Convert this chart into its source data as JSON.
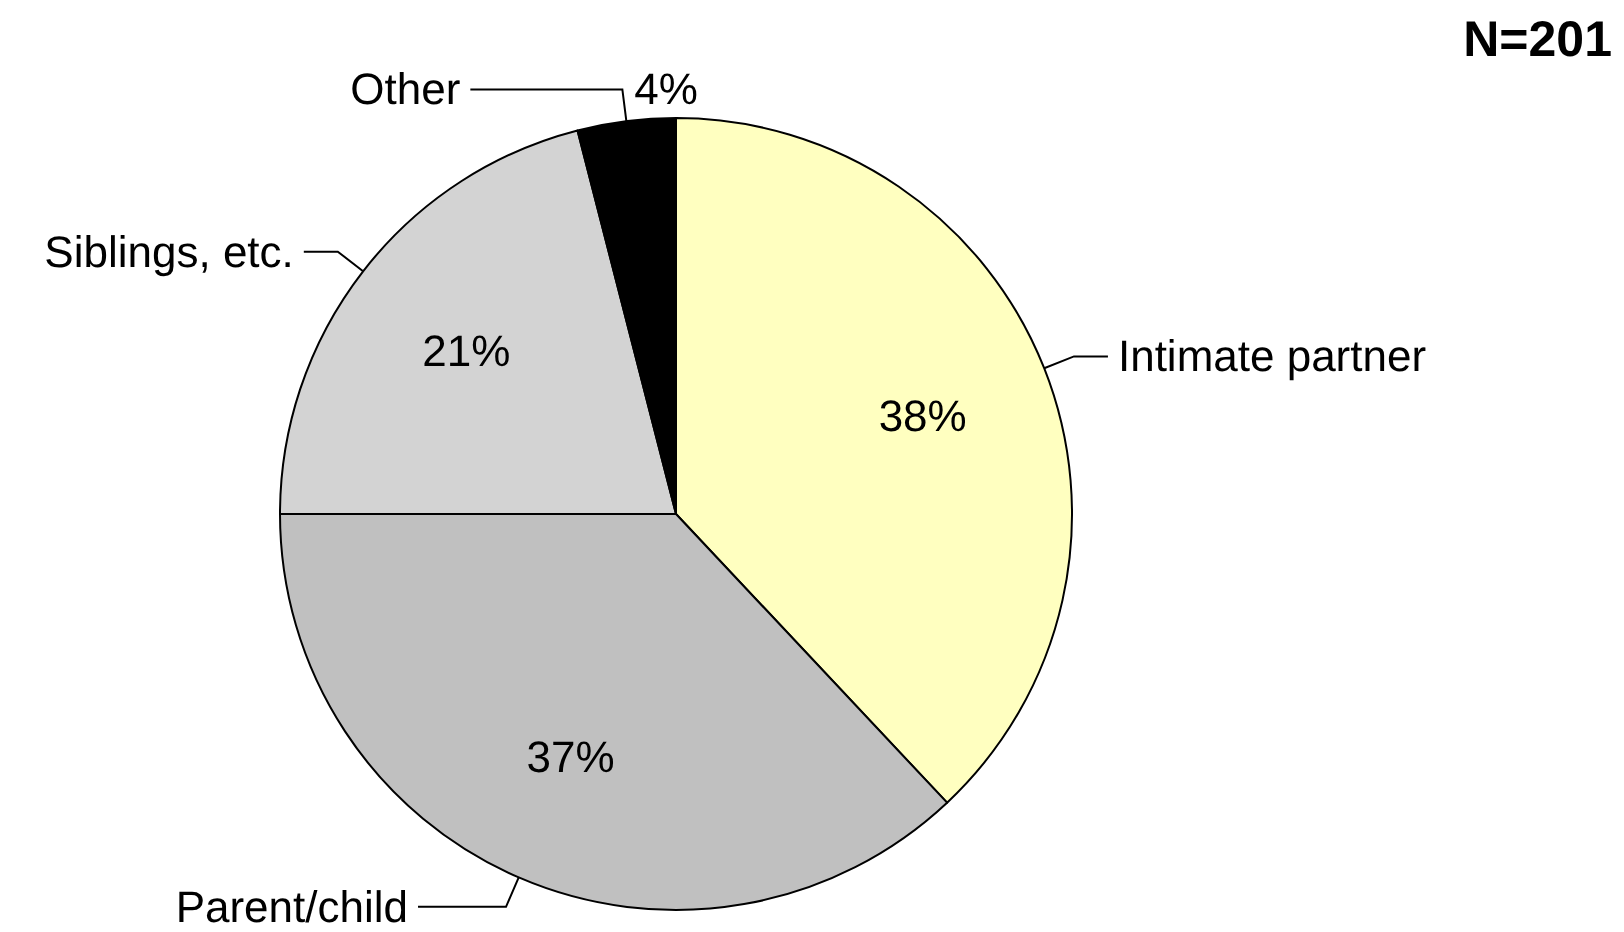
{
  "chart_data": {
    "type": "pie",
    "categories": [
      "Intimate partner",
      "Parent/child",
      "Siblings, etc.",
      "Other"
    ],
    "values": [
      38,
      37,
      21,
      4
    ],
    "colors": [
      "#ffffc0",
      "#c0c0c0",
      "#d3d3d3",
      "#000000"
    ],
    "value_labels": [
      "38%",
      "37%",
      "21%",
      "4%"
    ],
    "annotations": [
      "N=201"
    ]
  }
}
